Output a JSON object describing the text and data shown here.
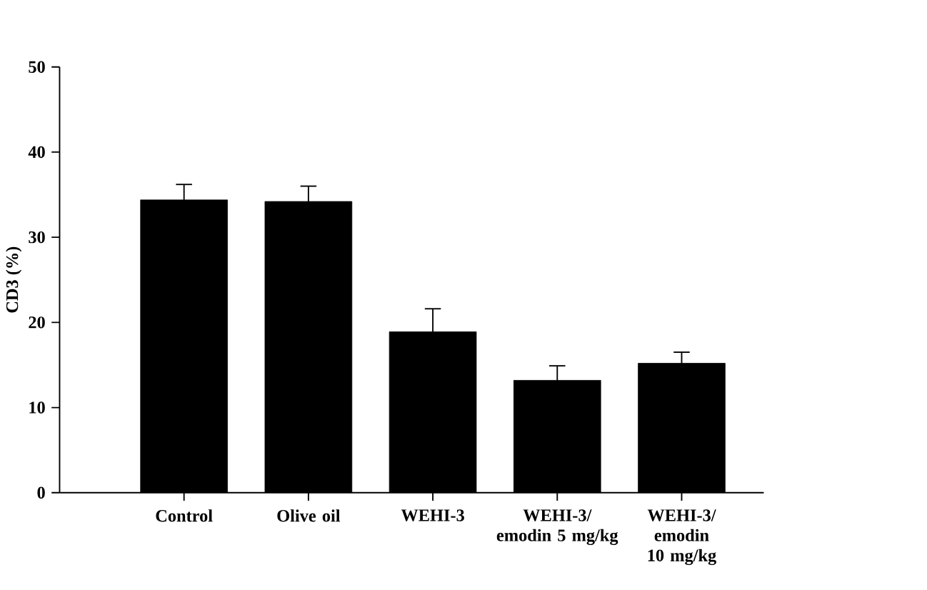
{
  "chart_data": {
    "type": "bar",
    "ylabel": "CD3 (%)",
    "categories": [
      "Control",
      "Olive oil",
      "WEHI-3",
      "WEHI-3/ emodin 5 mg/kg",
      "WEHI-3/ emodin 10 mg/kg"
    ],
    "values": [
      34.4,
      34.2,
      18.9,
      13.2,
      15.2
    ],
    "errors": [
      1.8,
      1.8,
      2.7,
      1.7,
      1.3
    ],
    "color": "#000000",
    "ylim": [
      0,
      50
    ],
    "yticks": [
      0,
      10,
      20,
      30,
      40,
      50
    ],
    "grid": false
  }
}
